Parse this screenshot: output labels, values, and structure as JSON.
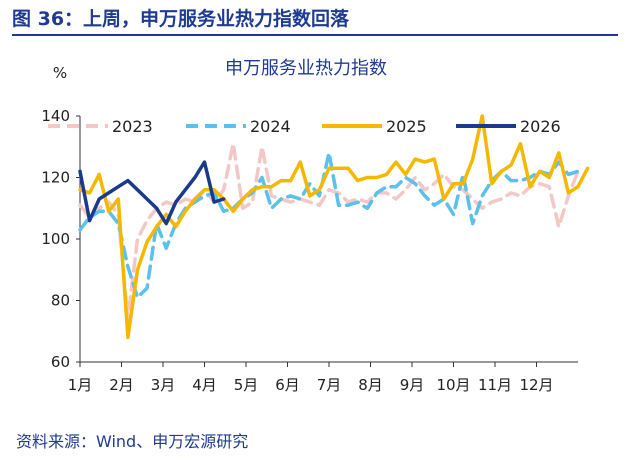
{
  "figure": {
    "title": "图 36：上周，申万服务业热力指数回落",
    "source": "资料来源：Wind、申万宏源研究"
  },
  "chart_data": {
    "type": "line",
    "title": "申万服务业热力指数",
    "ylabel": "%",
    "xlabel": "",
    "ylim": [
      60,
      140
    ],
    "yticks": [
      60,
      80,
      100,
      120,
      140
    ],
    "x_tick_labels": [
      "1月",
      "2月",
      "3月",
      "4月",
      "5月",
      "6月",
      "7月",
      "8月",
      "9月",
      "10月",
      "11月",
      "12月"
    ],
    "x_unit": "week of year",
    "x_range": [
      1,
      53
    ],
    "grid": false,
    "legend_position": "top",
    "series": [
      {
        "name": "2023",
        "color": "#f4c7c7",
        "dash": "dash",
        "width": 3.5,
        "values": [
          [
            1,
            111
          ],
          [
            2,
            107
          ],
          [
            3,
            110
          ],
          [
            4,
            112
          ],
          [
            5,
            108
          ],
          [
            6,
            74
          ],
          [
            7,
            100
          ],
          [
            8,
            106
          ],
          [
            9,
            110
          ],
          [
            10,
            112
          ],
          [
            11,
            111
          ],
          [
            12,
            113
          ],
          [
            13,
            112
          ],
          [
            14,
            116
          ],
          [
            15,
            112
          ],
          [
            16,
            116
          ],
          [
            17,
            131
          ],
          [
            18,
            110
          ],
          [
            19,
            112
          ],
          [
            20,
            130
          ],
          [
            21,
            114
          ],
          [
            22,
            113
          ],
          [
            23,
            112
          ],
          [
            24,
            113
          ],
          [
            25,
            112
          ],
          [
            26,
            111
          ],
          [
            27,
            116
          ],
          [
            28,
            115
          ],
          [
            29,
            112
          ],
          [
            30,
            113
          ],
          [
            31,
            112
          ],
          [
            32,
            115
          ],
          [
            33,
            115
          ],
          [
            34,
            113
          ],
          [
            35,
            116
          ],
          [
            36,
            120
          ],
          [
            37,
            116
          ],
          [
            38,
            118
          ],
          [
            39,
            121
          ],
          [
            40,
            117
          ],
          [
            41,
            116
          ],
          [
            42,
            113
          ],
          [
            43,
            110
          ],
          [
            44,
            112
          ],
          [
            45,
            113
          ],
          [
            46,
            115
          ],
          [
            47,
            114
          ],
          [
            48,
            117
          ],
          [
            49,
            118
          ],
          [
            50,
            117
          ],
          [
            51,
            104
          ],
          [
            52,
            114
          ],
          [
            53,
            122
          ]
        ]
      },
      {
        "name": "2024",
        "color": "#5bc0eb",
        "dash": "dash",
        "width": 3.5,
        "values": [
          [
            1,
            103
          ],
          [
            2,
            107
          ],
          [
            3,
            109
          ],
          [
            4,
            109
          ],
          [
            5,
            105
          ],
          [
            6,
            91
          ],
          [
            7,
            81
          ],
          [
            8,
            84
          ],
          [
            9,
            105
          ],
          [
            10,
            97
          ],
          [
            11,
            105
          ],
          [
            12,
            110
          ],
          [
            13,
            112
          ],
          [
            14,
            114
          ],
          [
            15,
            115
          ],
          [
            16,
            109
          ],
          [
            17,
            110
          ],
          [
            18,
            113
          ],
          [
            19,
            115
          ],
          [
            20,
            120
          ],
          [
            21,
            110
          ],
          [
            22,
            113
          ],
          [
            23,
            114
          ],
          [
            24,
            113
          ],
          [
            25,
            118
          ],
          [
            26,
            114
          ],
          [
            27,
            128
          ],
          [
            28,
            111
          ],
          [
            29,
            111
          ],
          [
            30,
            112
          ],
          [
            31,
            110
          ],
          [
            32,
            115
          ],
          [
            33,
            117
          ],
          [
            34,
            117
          ],
          [
            35,
            120
          ],
          [
            36,
            118
          ],
          [
            37,
            114
          ],
          [
            38,
            111
          ],
          [
            39,
            113
          ],
          [
            40,
            108
          ],
          [
            41,
            121
          ],
          [
            42,
            105
          ],
          [
            43,
            114
          ],
          [
            44,
            119
          ],
          [
            45,
            122
          ],
          [
            46,
            119
          ],
          [
            47,
            119
          ],
          [
            48,
            120
          ],
          [
            49,
            122
          ],
          [
            50,
            121
          ],
          [
            51,
            125
          ],
          [
            52,
            121
          ],
          [
            53,
            122
          ]
        ]
      },
      {
        "name": "2025",
        "color": "#f5b800",
        "dash": "solid",
        "width": 3.5,
        "values": [
          [
            1,
            116
          ],
          [
            2,
            115
          ],
          [
            3,
            121
          ],
          [
            4,
            109
          ],
          [
            5,
            113
          ],
          [
            6,
            68
          ],
          [
            7,
            90
          ],
          [
            8,
            99
          ],
          [
            9,
            104
          ],
          [
            10,
            108
          ],
          [
            11,
            104
          ],
          [
            12,
            109
          ],
          [
            13,
            113
          ],
          [
            14,
            116
          ],
          [
            15,
            116
          ],
          [
            16,
            113
          ],
          [
            17,
            109
          ],
          [
            18,
            113
          ],
          [
            19,
            116
          ],
          [
            20,
            117
          ],
          [
            21,
            117
          ],
          [
            22,
            119
          ],
          [
            23,
            119
          ],
          [
            24,
            125
          ],
          [
            25,
            114
          ],
          [
            26,
            116
          ],
          [
            27,
            123
          ],
          [
            28,
            123
          ],
          [
            29,
            123
          ],
          [
            30,
            119
          ],
          [
            31,
            120
          ],
          [
            32,
            120
          ],
          [
            33,
            121
          ],
          [
            34,
            125
          ],
          [
            35,
            121
          ],
          [
            36,
            126
          ],
          [
            37,
            125
          ],
          [
            38,
            126
          ],
          [
            39,
            113
          ],
          [
            40,
            118
          ],
          [
            41,
            118
          ],
          [
            42,
            126
          ],
          [
            43,
            140
          ],
          [
            44,
            118
          ],
          [
            45,
            122
          ],
          [
            46,
            124
          ],
          [
            47,
            131
          ],
          [
            48,
            117
          ],
          [
            49,
            122
          ],
          [
            50,
            120
          ],
          [
            51,
            128
          ],
          [
            52,
            115
          ],
          [
            53,
            117
          ],
          [
            54,
            123
          ]
        ]
      },
      {
        "name": "2026",
        "color": "#1a3a8c",
        "dash": "solid",
        "width": 3.5,
        "values": [
          [
            1,
            122
          ],
          [
            2,
            106
          ],
          [
            3,
            113
          ],
          [
            4,
            115
          ],
          [
            5,
            117
          ],
          [
            6,
            119
          ],
          [
            7,
            116
          ],
          [
            8,
            113
          ],
          [
            9,
            110
          ],
          [
            10,
            105
          ],
          [
            11,
            112
          ],
          [
            12,
            116
          ],
          [
            13,
            120
          ],
          [
            14,
            125
          ],
          [
            15,
            112
          ],
          [
            16,
            113
          ]
        ]
      }
    ]
  }
}
